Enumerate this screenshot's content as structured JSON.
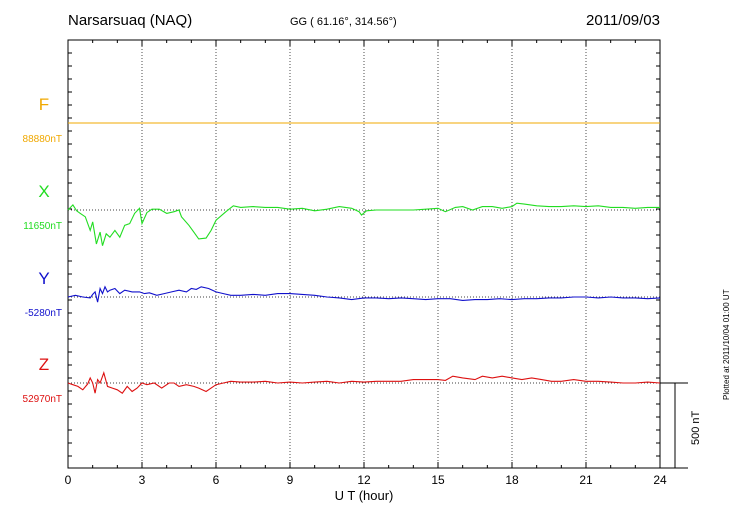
{
  "header": {
    "station": "Narsarsuaq (NAQ)",
    "coords": "GG ( 61.16°, 314.56°)",
    "date": "2011/09/03"
  },
  "footer": {
    "plotted": "Plotted at 2011/10/04 01:00 UT"
  },
  "colors": {
    "F": "#f0a800",
    "X": "#22dd22",
    "Y": "#1010cc",
    "Z": "#dd1111"
  },
  "chart_data": {
    "type": "line",
    "title": "Narsarsuaq (NAQ)",
    "xlabel": "U T (hour)",
    "xlim": [
      0,
      24
    ],
    "xticks": [
      "0",
      "3",
      "6",
      "9",
      "12",
      "15",
      "18",
      "21",
      "24"
    ],
    "grid": true,
    "scale_bar": {
      "value": 500,
      "label": "500 nT"
    },
    "series": [
      {
        "name": "F",
        "baseline_label": "88880nT",
        "points": [
          [
            0,
            0
          ],
          [
            24,
            0
          ]
        ]
      },
      {
        "name": "X",
        "baseline_label": "11650nT",
        "points": [
          [
            0,
            0
          ],
          [
            0.2,
            30
          ],
          [
            0.35,
            -5
          ],
          [
            0.5,
            -20
          ],
          [
            0.7,
            -40
          ],
          [
            0.9,
            -120
          ],
          [
            1.0,
            -70
          ],
          [
            1.15,
            -200
          ],
          [
            1.3,
            -130
          ],
          [
            1.4,
            -210
          ],
          [
            1.55,
            -140
          ],
          [
            1.7,
            -160
          ],
          [
            1.9,
            -120
          ],
          [
            2.1,
            -160
          ],
          [
            2.3,
            -90
          ],
          [
            2.5,
            -80
          ],
          [
            2.7,
            -20
          ],
          [
            2.9,
            10
          ],
          [
            3.0,
            -80
          ],
          [
            3.2,
            -15
          ],
          [
            3.4,
            5
          ],
          [
            3.7,
            5
          ],
          [
            4.0,
            -20
          ],
          [
            4.3,
            -10
          ],
          [
            4.5,
            0
          ],
          [
            4.6,
            -40
          ],
          [
            4.9,
            -90
          ],
          [
            5.1,
            -130
          ],
          [
            5.3,
            -170
          ],
          [
            5.6,
            -165
          ],
          [
            5.8,
            -120
          ],
          [
            6.0,
            -60
          ],
          [
            6.4,
            -10
          ],
          [
            6.7,
            25
          ],
          [
            7.0,
            15
          ],
          [
            7.5,
            20
          ],
          [
            8.0,
            15
          ],
          [
            8.5,
            15
          ],
          [
            9.0,
            5
          ],
          [
            9.5,
            10
          ],
          [
            10.0,
            -5
          ],
          [
            10.5,
            5
          ],
          [
            11.0,
            20
          ],
          [
            11.5,
            10
          ],
          [
            11.8,
            -10
          ],
          [
            11.9,
            -30
          ],
          [
            12.1,
            -5
          ],
          [
            12.5,
            0
          ],
          [
            13.0,
            0
          ],
          [
            13.5,
            0
          ],
          [
            14.0,
            0
          ],
          [
            14.5,
            5
          ],
          [
            15.0,
            10
          ],
          [
            15.3,
            -10
          ],
          [
            15.7,
            15
          ],
          [
            16.0,
            20
          ],
          [
            16.4,
            0
          ],
          [
            16.8,
            20
          ],
          [
            17.2,
            20
          ],
          [
            17.6,
            10
          ],
          [
            18.0,
            20
          ],
          [
            18.2,
            40
          ],
          [
            18.5,
            35
          ],
          [
            19.0,
            25
          ],
          [
            19.5,
            20
          ],
          [
            20.0,
            20
          ],
          [
            20.5,
            25
          ],
          [
            21.0,
            20
          ],
          [
            21.5,
            25
          ],
          [
            22.0,
            15
          ],
          [
            22.5,
            15
          ],
          [
            23.0,
            10
          ],
          [
            23.5,
            15
          ],
          [
            24.0,
            15
          ]
        ]
      },
      {
        "name": "Y",
        "baseline_label": "-5280nT",
        "points": [
          [
            0,
            0
          ],
          [
            0.3,
            10
          ],
          [
            0.6,
            0
          ],
          [
            0.9,
            -5
          ],
          [
            1.0,
            15
          ],
          [
            1.1,
            30
          ],
          [
            1.2,
            -30
          ],
          [
            1.3,
            50
          ],
          [
            1.4,
            20
          ],
          [
            1.5,
            60
          ],
          [
            1.6,
            30
          ],
          [
            1.7,
            40
          ],
          [
            1.9,
            50
          ],
          [
            2.1,
            20
          ],
          [
            2.3,
            40
          ],
          [
            2.6,
            30
          ],
          [
            2.9,
            30
          ],
          [
            3.1,
            20
          ],
          [
            3.3,
            25
          ],
          [
            3.6,
            10
          ],
          [
            3.9,
            20
          ],
          [
            4.2,
            30
          ],
          [
            4.5,
            40
          ],
          [
            4.8,
            30
          ],
          [
            5.0,
            50
          ],
          [
            5.2,
            45
          ],
          [
            5.4,
            60
          ],
          [
            5.7,
            50
          ],
          [
            6.0,
            30
          ],
          [
            6.3,
            20
          ],
          [
            6.6,
            10
          ],
          [
            7.0,
            10
          ],
          [
            7.5,
            15
          ],
          [
            8.0,
            10
          ],
          [
            8.5,
            20
          ],
          [
            9.0,
            20
          ],
          [
            9.5,
            15
          ],
          [
            10.0,
            10
          ],
          [
            10.5,
            0
          ],
          [
            11.0,
            -5
          ],
          [
            11.5,
            -15
          ],
          [
            12.0,
            -5
          ],
          [
            12.5,
            -5
          ],
          [
            13.0,
            -10
          ],
          [
            13.5,
            -5
          ],
          [
            14.0,
            -10
          ],
          [
            14.5,
            -15
          ],
          [
            15.0,
            -10
          ],
          [
            15.5,
            -10
          ],
          [
            16.0,
            -20
          ],
          [
            16.5,
            -15
          ],
          [
            17.0,
            -15
          ],
          [
            17.5,
            -10
          ],
          [
            18.0,
            -15
          ],
          [
            18.5,
            -10
          ],
          [
            19.0,
            -10
          ],
          [
            19.5,
            -5
          ],
          [
            20.0,
            -5
          ],
          [
            20.5,
            0
          ],
          [
            21.0,
            0
          ],
          [
            21.5,
            -5
          ],
          [
            22.0,
            0
          ],
          [
            22.5,
            -5
          ],
          [
            23.0,
            -5
          ],
          [
            23.5,
            -10
          ],
          [
            24.0,
            -5
          ]
        ]
      },
      {
        "name": "Z",
        "baseline_label": "52970nT",
        "points": [
          [
            0,
            0
          ],
          [
            0.2,
            -10
          ],
          [
            0.4,
            -20
          ],
          [
            0.6,
            -40
          ],
          [
            0.8,
            -5
          ],
          [
            0.9,
            30
          ],
          [
            1.0,
            0
          ],
          [
            1.1,
            -60
          ],
          [
            1.2,
            20
          ],
          [
            1.3,
            0
          ],
          [
            1.45,
            60
          ],
          [
            1.6,
            -20
          ],
          [
            1.8,
            -30
          ],
          [
            2.0,
            -40
          ],
          [
            2.2,
            -60
          ],
          [
            2.4,
            -20
          ],
          [
            2.6,
            -50
          ],
          [
            2.8,
            -30
          ],
          [
            3.0,
            0
          ],
          [
            3.2,
            -10
          ],
          [
            3.5,
            0
          ],
          [
            3.8,
            -30
          ],
          [
            4.1,
            0
          ],
          [
            4.3,
            0
          ],
          [
            4.5,
            -20
          ],
          [
            4.8,
            -10
          ],
          [
            5.1,
            -20
          ],
          [
            5.3,
            -30
          ],
          [
            5.6,
            -50
          ],
          [
            5.8,
            -30
          ],
          [
            6.0,
            -10
          ],
          [
            6.3,
            0
          ],
          [
            6.6,
            10
          ],
          [
            7.0,
            5
          ],
          [
            7.5,
            5
          ],
          [
            8.0,
            10
          ],
          [
            8.5,
            0
          ],
          [
            9.0,
            5
          ],
          [
            9.5,
            0
          ],
          [
            10.0,
            5
          ],
          [
            10.5,
            10
          ],
          [
            11.0,
            0
          ],
          [
            11.5,
            10
          ],
          [
            12.0,
            5
          ],
          [
            12.5,
            10
          ],
          [
            13.0,
            10
          ],
          [
            13.5,
            10
          ],
          [
            14.0,
            20
          ],
          [
            14.5,
            20
          ],
          [
            15.0,
            20
          ],
          [
            15.3,
            15
          ],
          [
            15.6,
            40
          ],
          [
            16.0,
            30
          ],
          [
            16.5,
            20
          ],
          [
            16.8,
            40
          ],
          [
            17.2,
            30
          ],
          [
            17.6,
            40
          ],
          [
            18.0,
            30
          ],
          [
            18.4,
            20
          ],
          [
            18.8,
            30
          ],
          [
            19.2,
            20
          ],
          [
            19.6,
            10
          ],
          [
            20.0,
            10
          ],
          [
            20.5,
            20
          ],
          [
            21.0,
            10
          ],
          [
            21.5,
            10
          ],
          [
            22.0,
            5
          ],
          [
            22.5,
            0
          ],
          [
            23.0,
            0
          ],
          [
            23.5,
            5
          ],
          [
            24.0,
            0
          ]
        ]
      }
    ]
  }
}
